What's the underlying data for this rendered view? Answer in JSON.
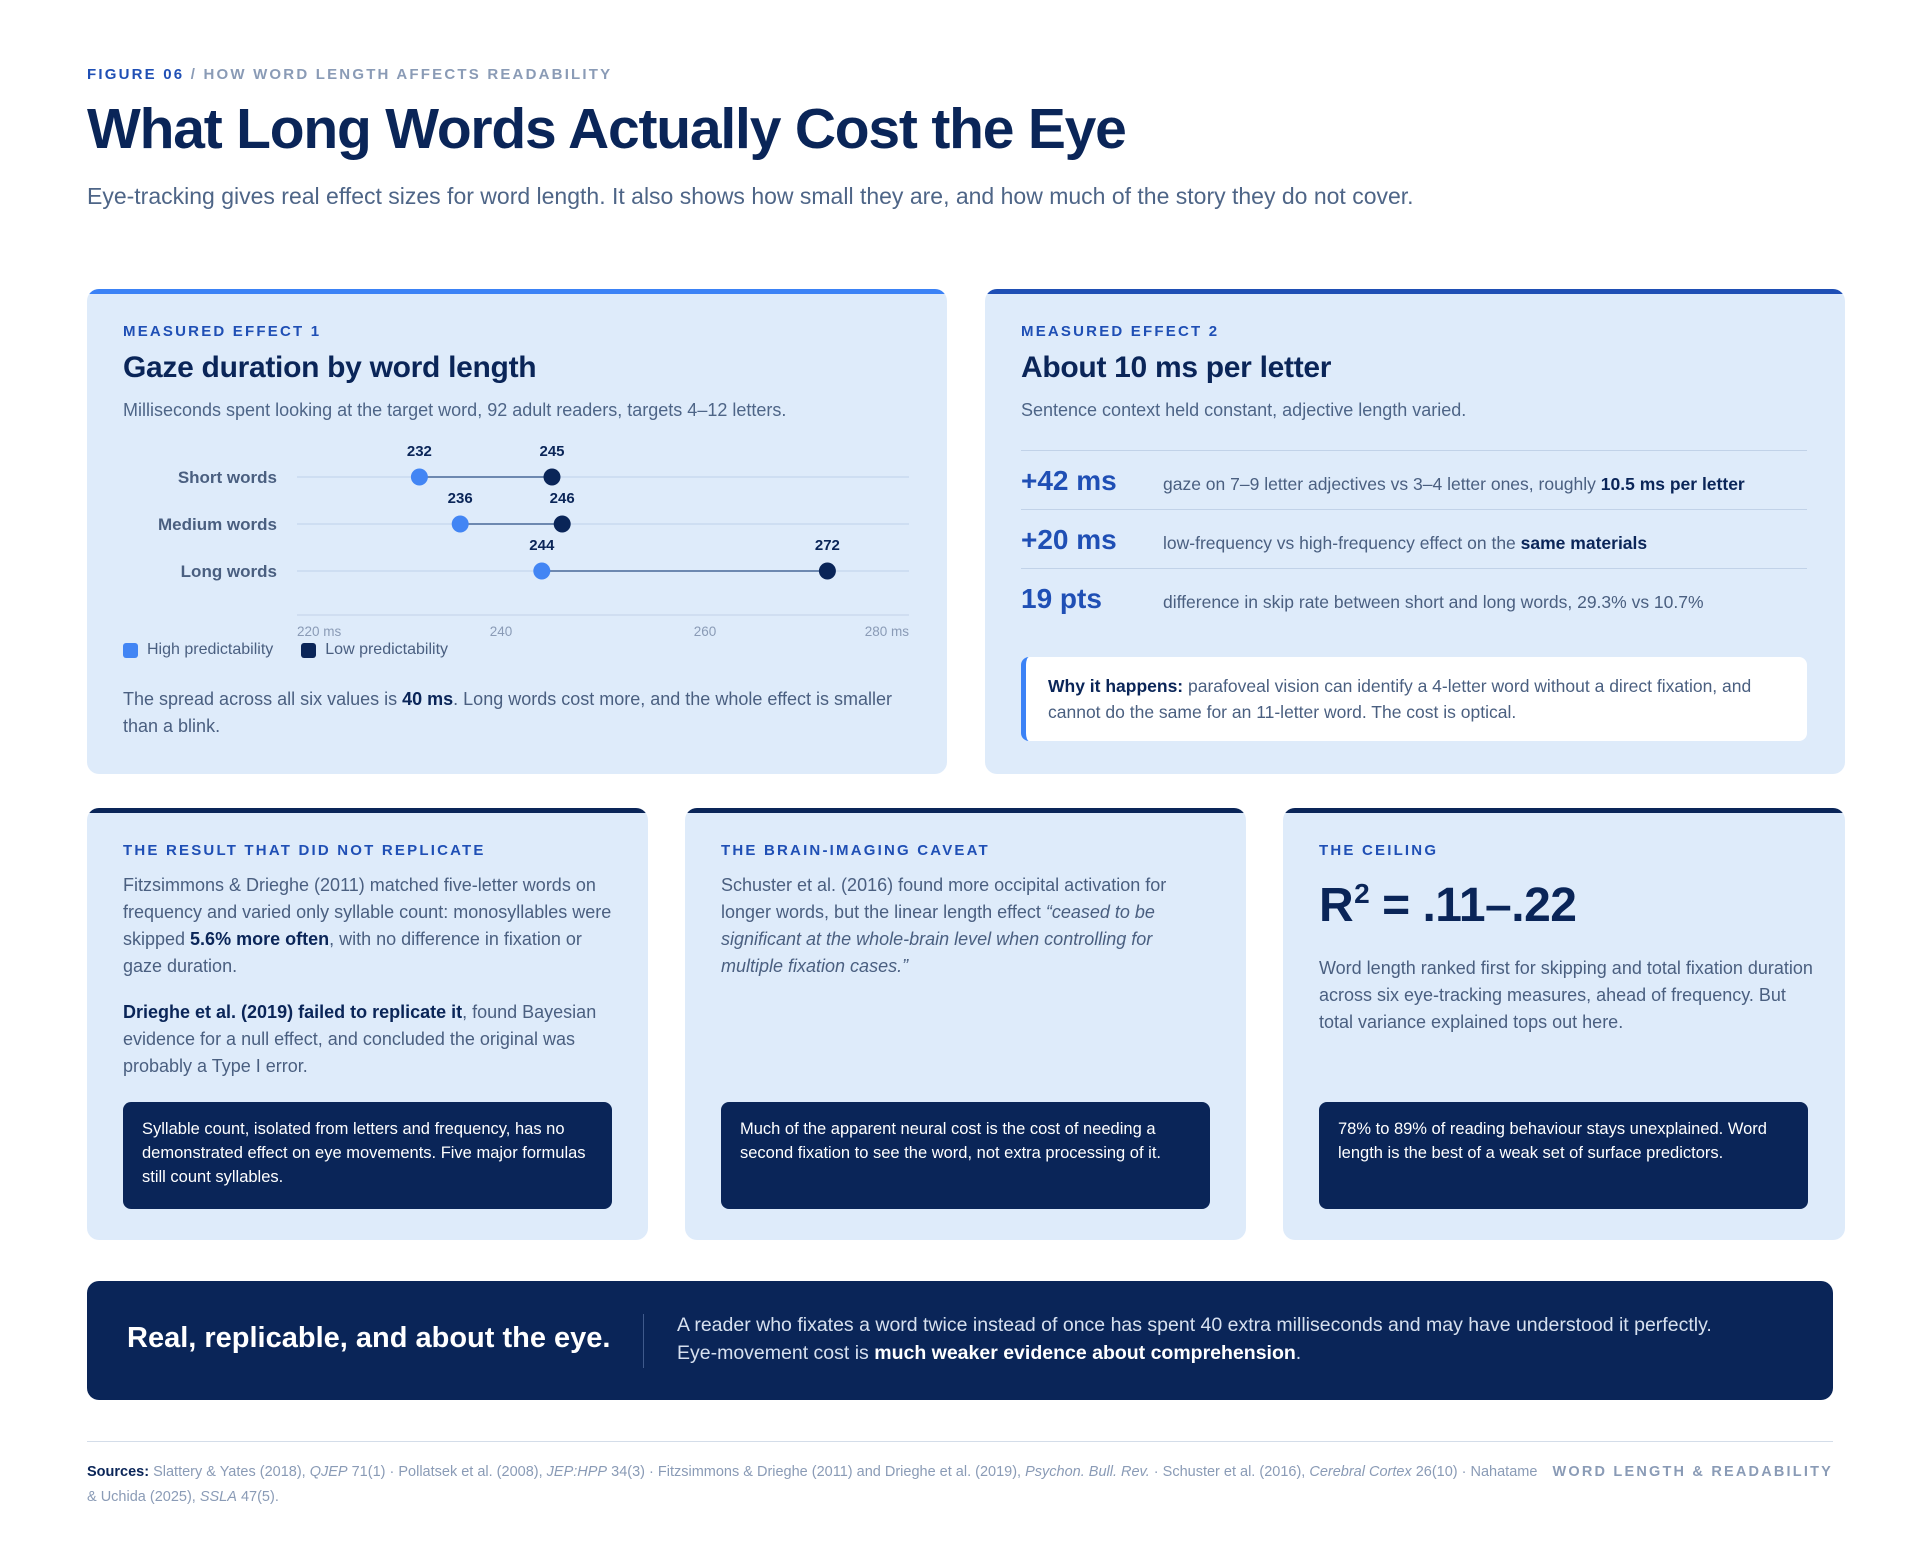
{
  "header": {
    "figure_label": "FIGURE 06",
    "figure_separator": " / ",
    "figure_topic": "HOW WORD LENGTH AFFECTS READABILITY",
    "title": "What Long Words Actually Cost the Eye",
    "subtitle": "Eye-tracking gives real effect sizes for word length. It also shows how small they are, and how much of the story they do not cover."
  },
  "card1": {
    "label": "MEASURED EFFECT 1",
    "heading": "Gaze duration by word length",
    "subheading": "Milliseconds spent looking at the target word, 92 adult readers, targets 4–12 letters.",
    "legend": [
      "High predictability",
      "Low predictability"
    ],
    "note_pre": "The spread across all six values is ",
    "note_bold": "40 ms",
    "note_post": ". Long words cost more, and the whole effect is smaller than a blink.",
    "colors": {
      "accent": "#3b82f6",
      "high": "#4285f4",
      "low": "#0a2558"
    }
  },
  "chart_data": {
    "type": "scatter",
    "subtype": "dumbbell",
    "categories": [
      "Short words",
      "Medium words",
      "Long words"
    ],
    "series": [
      {
        "name": "High predictability",
        "values": [
          232,
          236,
          244
        ],
        "color": "#4285f4"
      },
      {
        "name": "Low predictability",
        "values": [
          245,
          246,
          272
        ],
        "color": "#0a2558"
      }
    ],
    "xlim": [
      220,
      280
    ],
    "xticks": [
      "220 ms",
      "240",
      "260",
      "280 ms"
    ],
    "xtick_values": [
      220,
      240,
      260,
      280
    ],
    "xlabel": "",
    "ylabel": "",
    "legend_position": "bottom-left",
    "grid": false
  },
  "card2": {
    "label": "MEASURED EFFECT 2",
    "heading": "About 10 ms per letter",
    "subheading": "Sentence context held constant, adjective length varied.",
    "stats": [
      {
        "value": "+42 ms",
        "desc": "gaze on 7–9 letter adjectives vs 3–4 letter ones, roughly ",
        "bold": "10.5 ms per letter"
      },
      {
        "value": "+20 ms",
        "desc": "low-frequency vs high-frequency effect on the ",
        "bold": "same materials"
      },
      {
        "value": "19 pts",
        "desc": "difference in skip rate between short and long words, 29.3% vs 10.7%",
        "bold": ""
      }
    ],
    "why_label": "Why it happens:",
    "why_text": " parafoveal vision can identify a 4-letter word without a direct fixation, and cannot do the same for an 11-letter word. The cost is optical.",
    "colors": {
      "accent": "#1f4fb5"
    }
  },
  "card3": {
    "label": "THE RESULT THAT DID NOT REPLICATE",
    "p1_pre": "Fitzsimmons & Drieghe (2011) matched five-letter words on frequency and varied only syllable count: monosyllables were skipped ",
    "p1_bold": "5.6% more often",
    "p1_post": ", with no difference in fixation or gaze duration.",
    "p2_bold": "Drieghe et al. (2019) failed to replicate it",
    "p2_post": ", found Bayesian evidence for a null effect, and concluded the original was probably a Type I error.",
    "box": "Syllable count, isolated from letters and frequency, has no demonstrated effect on eye movements. Five major formulas still count syllables."
  },
  "card4": {
    "label": "THE BRAIN-IMAGING CAVEAT",
    "p_pre": "Schuster et al. (2016) found more occipital activation for longer words, but the linear length effect ",
    "p_quote": "“ceased to be significant at the whole-brain level when controlling for multiple fixation cases.”",
    "box": "Much of the apparent neural cost is the cost of needing a second fixation to see the word, not extra processing of it."
  },
  "card5": {
    "label": "THE CEILING",
    "r2_prefix": "R",
    "r2_exp": "2",
    "r2_value": " = .11–.22",
    "p": "Word length ranked first for skipping and total fixation duration across six eye-tracking measures, ahead of frequency. But total variance explained tops out here.",
    "box": "78% to 89% of reading behaviour stays unexplained. Word length is the best of a weak set of surface predictors."
  },
  "banner": {
    "left": "Real, replicable, and about the eye.",
    "right_pre": "A reader who fixates a word twice instead of once has spent 40 extra milliseconds and may have understood it perfectly. Eye-movement cost is ",
    "right_bold": "much weaker evidence about comprehension",
    "right_post": "."
  },
  "footer": {
    "sources_label": "Sources:",
    "s1": " Slattery & Yates (2018), ",
    "s1i": "QJEP",
    "s2": " 71(1) · Pollatsek et al. (2008), ",
    "s2i": "JEP:HPP",
    "s3": " 34(3) · Fitzsimmons & Drieghe (2011) and Drieghe et al. (2019), ",
    "s3i": "Psychon. Bull. Rev.",
    "s4": " · Schuster et al. (2016), ",
    "s4i": "Cerebral Cortex",
    "s5": " 26(10) · Nahatame & Uchida (2025), ",
    "s5i": "SSLA",
    "s6": " 47(5).",
    "tag": "WORD LENGTH & READABILITY"
  }
}
